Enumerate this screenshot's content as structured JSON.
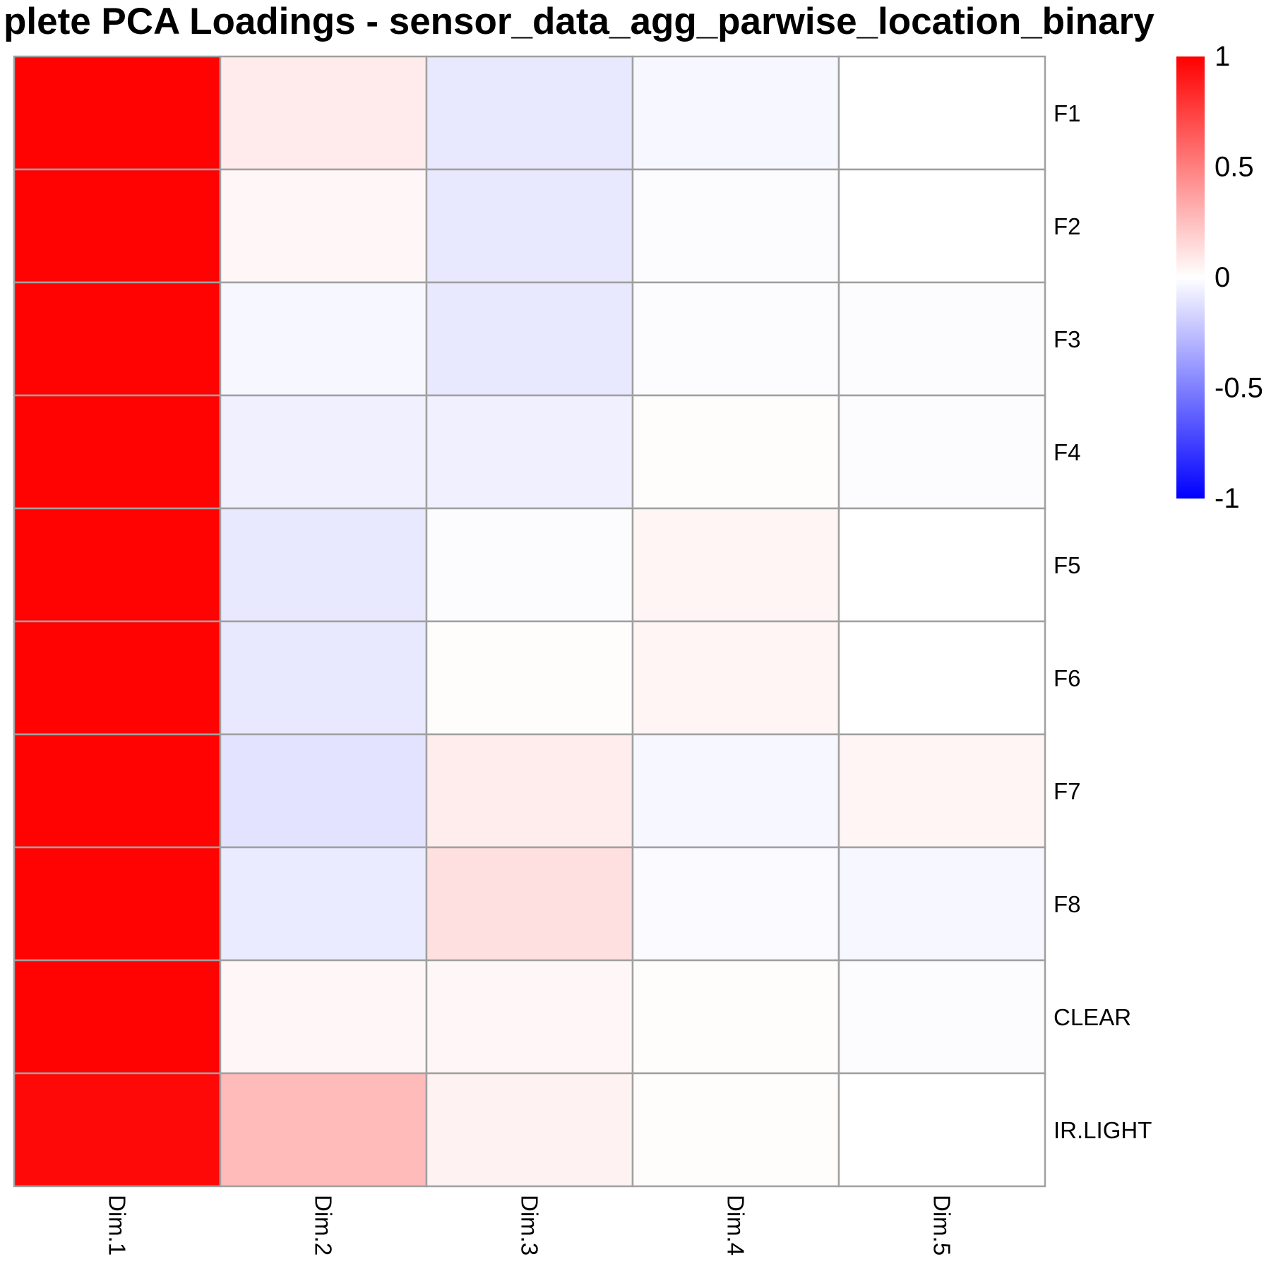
{
  "chart_data": {
    "type": "heatmap",
    "title": "plete PCA Loadings - sensor_data_agg_parwise_location_binary",
    "rows": [
      "F1",
      "F2",
      "F3",
      "F4",
      "F5",
      "F6",
      "F7",
      "F8",
      "CLEAR",
      "IR.LIGHT"
    ],
    "columns": [
      "Dim.1",
      "Dim.2",
      "Dim.3",
      "Dim.4",
      "Dim.5"
    ],
    "values": [
      [
        0.99,
        0.08,
        -0.09,
        -0.03,
        0.0
      ],
      [
        0.99,
        0.03,
        -0.09,
        -0.01,
        0.0
      ],
      [
        0.99,
        -0.03,
        -0.09,
        -0.01,
        -0.01
      ],
      [
        0.99,
        -0.06,
        -0.06,
        0.01,
        -0.01
      ],
      [
        0.99,
        -0.09,
        -0.01,
        0.04,
        0.0
      ],
      [
        0.99,
        -0.09,
        0.01,
        0.04,
        0.0
      ],
      [
        0.99,
        -0.11,
        0.07,
        -0.03,
        0.04
      ],
      [
        0.99,
        -0.08,
        0.12,
        -0.02,
        -0.03
      ],
      [
        0.99,
        0.03,
        0.03,
        0.01,
        -0.01
      ],
      [
        0.97,
        0.27,
        0.05,
        0.01,
        0.0
      ]
    ],
    "color_scale": {
      "min": -1,
      "mid": 0,
      "max": 1,
      "low_color": "#0000ff",
      "mid_color": "#ffffff",
      "high_color": "#ff0000"
    },
    "legend": {
      "position": "top-right",
      "ticks": [
        1,
        0.5,
        0,
        -0.5,
        -1
      ],
      "tick_labels": [
        "1",
        "0.5",
        "0",
        "-0.5",
        "-1"
      ]
    },
    "cell_border_color": "#a0a0a0"
  }
}
